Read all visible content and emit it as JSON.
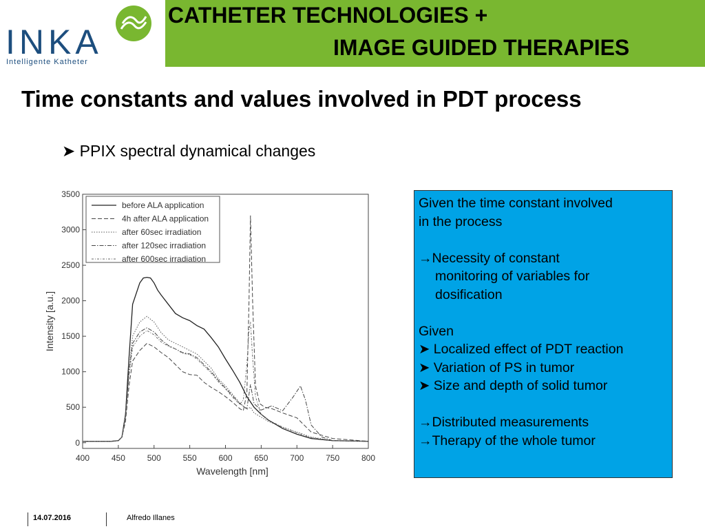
{
  "header": {
    "logo_text": "INKA",
    "logo_subtitle": "Intelligente Katheter",
    "banner_line1": "CATHETER TECHNOLOGIES +",
    "banner_line2": "IMAGE GUIDED THERAPIES",
    "banner_color": "#79b730"
  },
  "slide": {
    "title": "Time constants and values involved in PDT process",
    "bullet": "PPIX spectral dynamical changes"
  },
  "infobox": {
    "bg_color": "#00a3e6",
    "line1": "Given the time constant involved",
    "line2": "in the process",
    "arrow1_l1": "Necessity of constant",
    "arrow1_l2": "monitoring of variables for",
    "arrow1_l3": "dosification",
    "given": "Given",
    "b1": "Localized effect of PDT reaction",
    "b2": "Variation of PS in tumor",
    "b3": "Size and depth of solid tumor",
    "arrow2": "Distributed measurements",
    "arrow3": "Therapy of the whole tumor"
  },
  "footer": {
    "date": "14.07.2016",
    "author": "Alfredo Illanes"
  },
  "chart_data": {
    "type": "line",
    "xlabel": "Wavelength [nm]",
    "ylabel": "Intensity [a.u.]",
    "xlim": [
      400,
      800
    ],
    "ylim": [
      -80,
      3500
    ],
    "xticks": [
      400,
      450,
      500,
      550,
      600,
      650,
      700,
      750,
      800
    ],
    "yticks": [
      0,
      500,
      1000,
      1500,
      2000,
      2500,
      3000,
      3500
    ],
    "legend_position": "top-left",
    "grid": false,
    "series": [
      {
        "name": "before ALA application",
        "x": [
          400,
          440,
          450,
          455,
          460,
          465,
          470,
          480,
          485,
          490,
          495,
          500,
          505,
          510,
          520,
          530,
          540,
          550,
          560,
          570,
          580,
          590,
          600,
          610,
          620,
          630,
          640,
          650,
          660,
          680,
          700,
          720,
          750,
          800
        ],
        "y": [
          20,
          20,
          30,
          80,
          400,
          1200,
          1950,
          2250,
          2320,
          2330,
          2320,
          2250,
          2150,
          2080,
          1950,
          1820,
          1760,
          1720,
          1650,
          1600,
          1480,
          1350,
          1180,
          1020,
          850,
          650,
          500,
          400,
          320,
          200,
          120,
          60,
          30,
          20
        ]
      },
      {
        "name": "4h after ALA application",
        "x": [
          400,
          440,
          450,
          455,
          460,
          465,
          470,
          480,
          490,
          500,
          510,
          520,
          530,
          540,
          550,
          560,
          570,
          580,
          590,
          600,
          610,
          620,
          625,
          630,
          633,
          635,
          638,
          642,
          648,
          655,
          665,
          680,
          700,
          720,
          750,
          800
        ],
        "y": [
          20,
          20,
          30,
          80,
          300,
          800,
          1150,
          1300,
          1400,
          1350,
          1270,
          1200,
          1100,
          1000,
          960,
          950,
          850,
          780,
          720,
          650,
          570,
          480,
          450,
          700,
          2000,
          3200,
          2000,
          800,
          550,
          500,
          480,
          420,
          350,
          150,
          60,
          20
        ]
      },
      {
        "name": "after 60sec irradiation",
        "x": [
          400,
          440,
          450,
          455,
          460,
          465,
          470,
          480,
          490,
          500,
          510,
          520,
          530,
          540,
          550,
          560,
          570,
          580,
          590,
          600,
          610,
          620,
          630,
          635,
          640,
          650,
          660,
          680,
          700,
          720,
          750,
          800
        ],
        "y": [
          20,
          20,
          30,
          80,
          400,
          1000,
          1500,
          1700,
          1780,
          1700,
          1550,
          1450,
          1400,
          1350,
          1300,
          1250,
          1150,
          1050,
          900,
          800,
          680,
          560,
          470,
          500,
          420,
          360,
          300,
          220,
          150,
          80,
          30,
          20
        ]
      },
      {
        "name": "after 120sec irradiation",
        "x": [
          400,
          440,
          450,
          455,
          460,
          465,
          470,
          480,
          490,
          500,
          510,
          520,
          530,
          540,
          550,
          560,
          570,
          580,
          590,
          600,
          610,
          620,
          630,
          635,
          640,
          650,
          665,
          680,
          695,
          705,
          712,
          720,
          735,
          750,
          800
        ],
        "y": [
          20,
          20,
          30,
          80,
          400,
          1000,
          1400,
          1560,
          1620,
          1560,
          1450,
          1370,
          1320,
          1270,
          1250,
          1200,
          1100,
          1000,
          880,
          770,
          660,
          550,
          480,
          820,
          550,
          460,
          520,
          450,
          650,
          800,
          600,
          250,
          80,
          30,
          20
        ]
      },
      {
        "name": "after 600sec irradiation",
        "x": [
          400,
          440,
          450,
          455,
          460,
          465,
          470,
          480,
          490,
          500,
          510,
          520,
          530,
          540,
          550,
          560,
          570,
          580,
          590,
          600,
          610,
          620,
          625,
          630,
          633,
          635,
          638,
          642,
          650,
          660,
          680,
          700,
          720,
          750,
          800
        ],
        "y": [
          20,
          20,
          30,
          80,
          350,
          950,
          1350,
          1500,
          1580,
          1520,
          1420,
          1360,
          1320,
          1260,
          1240,
          1180,
          1080,
          980,
          860,
          760,
          640,
          540,
          600,
          1100,
          1600,
          1700,
          1200,
          650,
          400,
          320,
          220,
          140,
          70,
          30,
          20
        ]
      }
    ]
  }
}
